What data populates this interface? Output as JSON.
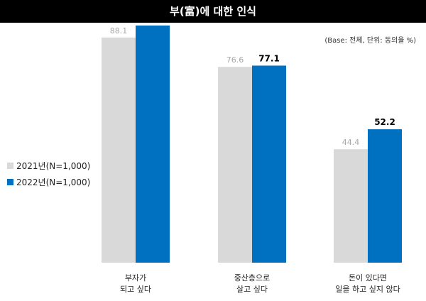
{
  "title": "부(富)에 대한 인식",
  "note": "(Base: 전체, 단위: 동의율 %)",
  "legend": [
    {
      "label": "2021년(N=1,000)",
      "color": "#d9d9d9"
    },
    {
      "label": "2022년(N=1,000)",
      "color": "#0070c0"
    }
  ],
  "categories": [
    {
      "line1": "부자가",
      "line2": "되고 싶다"
    },
    {
      "line1": "중산층으로",
      "line2": "살고 싶다"
    },
    {
      "line1": "돈이 있다면",
      "line2": "일을 하고 싶지 않다"
    }
  ],
  "chart_data": {
    "type": "bar",
    "categories": [
      "부자가 되고 싶다",
      "중산층으로 살고 싶다",
      "돈이 있다면 일을 하고 싶지 않다"
    ],
    "series": [
      {
        "name": "2021년(N=1,000)",
        "values": [
          88.1,
          76.6,
          44.4
        ],
        "color": "#d9d9d9",
        "label_color": "#a6a6a6"
      },
      {
        "name": "2022년(N=1,000)",
        "values": [
          92.8,
          77.1,
          52.2
        ],
        "color": "#0070c0",
        "label_color": "#000000"
      }
    ],
    "ylim": [
      0,
      100
    ],
    "grid": false,
    "legend_position": "left"
  }
}
